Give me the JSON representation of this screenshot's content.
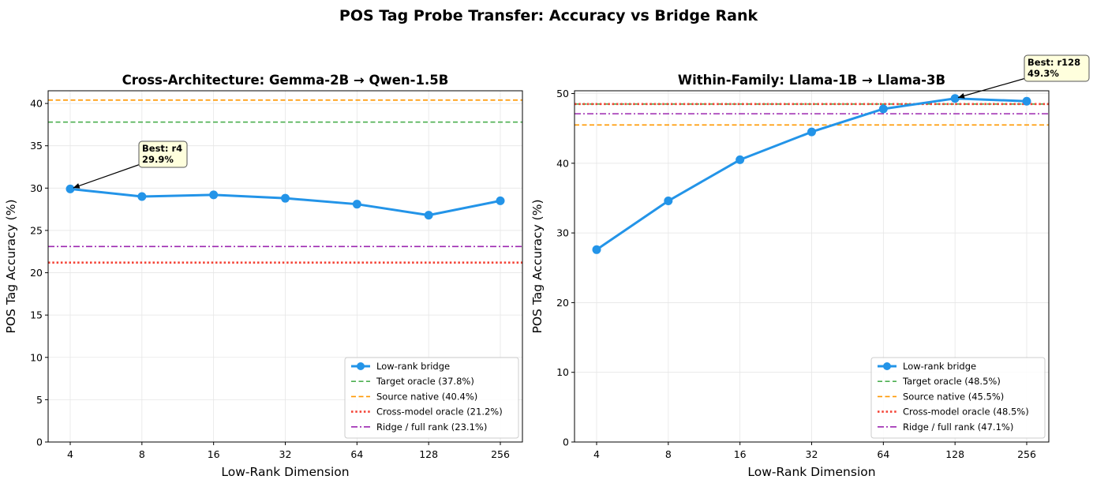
{
  "suptitle": "POS Tag Probe Transfer: Accuracy vs Bridge Rank",
  "colors": {
    "series": "#2394e8",
    "target": "#4caf50",
    "source": "#ff9800",
    "cross": "#f44336",
    "ridge": "#9c27b0",
    "annotation_bg": "#ffffdd"
  },
  "chart_data": [
    {
      "type": "line",
      "title": "Cross-Architecture: Gemma-2B → Qwen-1.5B",
      "xlabel": "Low-Rank Dimension",
      "ylabel": "POS Tag Accuracy (%)",
      "categories": [
        "4",
        "8",
        "16",
        "32",
        "64",
        "128",
        "256"
      ],
      "ylim": [
        0,
        41.5
      ],
      "yticks": [
        0,
        5,
        10,
        15,
        20,
        25,
        30,
        35,
        40
      ],
      "grid": true,
      "legend_position": "lower right",
      "series": [
        {
          "name": "Low-rank bridge",
          "values": [
            29.9,
            29.0,
            29.2,
            28.8,
            28.1,
            26.8,
            28.5
          ]
        }
      ],
      "reference_lines": [
        {
          "name": "Target oracle (37.8%)",
          "value": 37.8,
          "style": "dashed",
          "color_key": "target"
        },
        {
          "name": "Source native (40.4%)",
          "value": 40.4,
          "style": "dashed",
          "color_key": "source"
        },
        {
          "name": "Cross-model oracle (21.2%)",
          "value": 21.2,
          "style": "dotted",
          "color_key": "cross"
        },
        {
          "name": "Ridge / full rank (23.1%)",
          "value": 23.1,
          "style": "dashdot",
          "color_key": "ridge"
        }
      ],
      "annotation": {
        "line1": "Best: r4",
        "line2": "29.9%",
        "point_index": 0
      }
    },
    {
      "type": "line",
      "title": "Within-Family: Llama-1B → Llama-3B",
      "xlabel": "Low-Rank Dimension",
      "ylabel": "POS Tag Accuracy (%)",
      "categories": [
        "4",
        "8",
        "16",
        "32",
        "64",
        "128",
        "256"
      ],
      "ylim": [
        0,
        50.4
      ],
      "yticks": [
        0,
        10,
        20,
        30,
        40,
        50
      ],
      "grid": true,
      "legend_position": "lower right",
      "series": [
        {
          "name": "Low-rank bridge",
          "values": [
            27.6,
            34.6,
            40.5,
            44.5,
            47.8,
            49.3,
            48.9
          ]
        }
      ],
      "reference_lines": [
        {
          "name": "Target oracle (48.5%)",
          "value": 48.5,
          "style": "dashed",
          "color_key": "target"
        },
        {
          "name": "Source native (45.5%)",
          "value": 45.5,
          "style": "dashed",
          "color_key": "source"
        },
        {
          "name": "Cross-model oracle (48.5%)",
          "value": 48.5,
          "style": "dotted",
          "color_key": "cross"
        },
        {
          "name": "Ridge / full rank (47.1%)",
          "value": 47.1,
          "style": "dashdot",
          "color_key": "ridge"
        }
      ],
      "annotation": {
        "line1": "Best: r128",
        "line2": "49.3%",
        "point_index": 5
      }
    }
  ]
}
